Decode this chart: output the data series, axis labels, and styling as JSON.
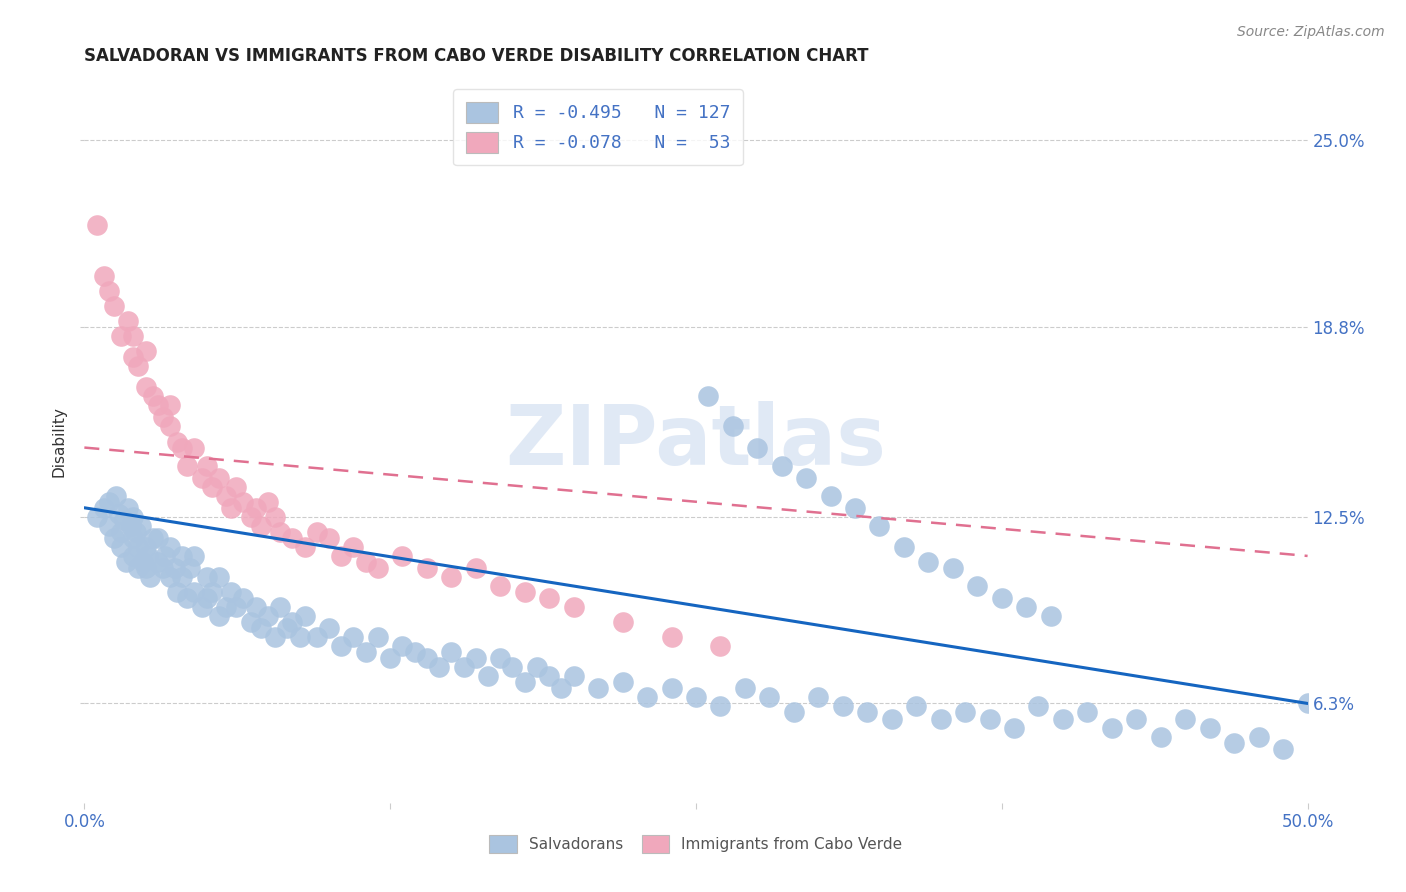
{
  "title": "SALVADORAN VS IMMIGRANTS FROM CABO VERDE DISABILITY CORRELATION CHART",
  "source": "Source: ZipAtlas.com",
  "ylabel": "Disability",
  "ytick_labels": [
    "6.3%",
    "12.5%",
    "18.8%",
    "25.0%"
  ],
  "ytick_values": [
    0.063,
    0.125,
    0.188,
    0.25
  ],
  "xlim": [
    0.0,
    0.5
  ],
  "ylim": [
    0.03,
    0.27
  ],
  "blue_color": "#aac4e0",
  "pink_color": "#f0a8bc",
  "blue_line_color": "#1565c0",
  "pink_line_color": "#e07090",
  "watermark_text": "ZIPatlas",
  "legend_entries": [
    {
      "label": "R = -0.495   N = 127",
      "color": "#aac4e0"
    },
    {
      "label": "R = -0.078   N =  53",
      "color": "#f0a8bc"
    }
  ],
  "bottom_legend": [
    "Salvadorans",
    "Immigrants from Cabo Verde"
  ],
  "blue_line_x": [
    0.0,
    0.5
  ],
  "blue_line_y": [
    0.128,
    0.063
  ],
  "pink_line_x": [
    0.0,
    0.5
  ],
  "pink_line_y": [
    0.148,
    0.112
  ],
  "blue_x": [
    0.005,
    0.008,
    0.01,
    0.01,
    0.012,
    0.013,
    0.014,
    0.015,
    0.015,
    0.016,
    0.017,
    0.018,
    0.019,
    0.02,
    0.02,
    0.02,
    0.021,
    0.022,
    0.022,
    0.023,
    0.024,
    0.025,
    0.025,
    0.026,
    0.027,
    0.028,
    0.03,
    0.03,
    0.032,
    0.033,
    0.035,
    0.035,
    0.037,
    0.038,
    0.04,
    0.04,
    0.042,
    0.043,
    0.045,
    0.045,
    0.048,
    0.05,
    0.05,
    0.052,
    0.055,
    0.055,
    0.058,
    0.06,
    0.062,
    0.065,
    0.068,
    0.07,
    0.072,
    0.075,
    0.078,
    0.08,
    0.083,
    0.085,
    0.088,
    0.09,
    0.095,
    0.1,
    0.105,
    0.11,
    0.115,
    0.12,
    0.125,
    0.13,
    0.135,
    0.14,
    0.145,
    0.15,
    0.155,
    0.16,
    0.165,
    0.17,
    0.175,
    0.18,
    0.185,
    0.19,
    0.195,
    0.2,
    0.21,
    0.22,
    0.23,
    0.24,
    0.25,
    0.26,
    0.27,
    0.28,
    0.29,
    0.3,
    0.31,
    0.32,
    0.33,
    0.34,
    0.35,
    0.36,
    0.37,
    0.38,
    0.39,
    0.4,
    0.41,
    0.42,
    0.43,
    0.44,
    0.45,
    0.46,
    0.47,
    0.48,
    0.49,
    0.5,
    0.255,
    0.265,
    0.275,
    0.285,
    0.295,
    0.305,
    0.315,
    0.325,
    0.335,
    0.345,
    0.355,
    0.365,
    0.375,
    0.385,
    0.395
  ],
  "blue_y": [
    0.125,
    0.128,
    0.13,
    0.122,
    0.118,
    0.132,
    0.126,
    0.12,
    0.115,
    0.124,
    0.11,
    0.128,
    0.122,
    0.118,
    0.125,
    0.112,
    0.12,
    0.108,
    0.115,
    0.122,
    0.11,
    0.115,
    0.108,
    0.112,
    0.105,
    0.118,
    0.11,
    0.118,
    0.108,
    0.112,
    0.105,
    0.115,
    0.108,
    0.1,
    0.105,
    0.112,
    0.098,
    0.108,
    0.1,
    0.112,
    0.095,
    0.105,
    0.098,
    0.1,
    0.092,
    0.105,
    0.095,
    0.1,
    0.095,
    0.098,
    0.09,
    0.095,
    0.088,
    0.092,
    0.085,
    0.095,
    0.088,
    0.09,
    0.085,
    0.092,
    0.085,
    0.088,
    0.082,
    0.085,
    0.08,
    0.085,
    0.078,
    0.082,
    0.08,
    0.078,
    0.075,
    0.08,
    0.075,
    0.078,
    0.072,
    0.078,
    0.075,
    0.07,
    0.075,
    0.072,
    0.068,
    0.072,
    0.068,
    0.07,
    0.065,
    0.068,
    0.065,
    0.062,
    0.068,
    0.065,
    0.06,
    0.065,
    0.062,
    0.06,
    0.058,
    0.062,
    0.058,
    0.06,
    0.058,
    0.055,
    0.062,
    0.058,
    0.06,
    0.055,
    0.058,
    0.052,
    0.058,
    0.055,
    0.05,
    0.052,
    0.048,
    0.063,
    0.165,
    0.155,
    0.148,
    0.142,
    0.138,
    0.132,
    0.128,
    0.122,
    0.115,
    0.11,
    0.108,
    0.102,
    0.098,
    0.095,
    0.092
  ],
  "pink_x": [
    0.005,
    0.008,
    0.01,
    0.012,
    0.015,
    0.018,
    0.02,
    0.02,
    0.022,
    0.025,
    0.025,
    0.028,
    0.03,
    0.032,
    0.035,
    0.035,
    0.038,
    0.04,
    0.042,
    0.045,
    0.048,
    0.05,
    0.052,
    0.055,
    0.058,
    0.06,
    0.062,
    0.065,
    0.068,
    0.07,
    0.072,
    0.075,
    0.078,
    0.08,
    0.085,
    0.09,
    0.095,
    0.1,
    0.105,
    0.11,
    0.115,
    0.12,
    0.13,
    0.14,
    0.15,
    0.16,
    0.17,
    0.18,
    0.19,
    0.2,
    0.22,
    0.24,
    0.26
  ],
  "pink_y": [
    0.222,
    0.205,
    0.2,
    0.195,
    0.185,
    0.19,
    0.178,
    0.185,
    0.175,
    0.168,
    0.18,
    0.165,
    0.162,
    0.158,
    0.155,
    0.162,
    0.15,
    0.148,
    0.142,
    0.148,
    0.138,
    0.142,
    0.135,
    0.138,
    0.132,
    0.128,
    0.135,
    0.13,
    0.125,
    0.128,
    0.122,
    0.13,
    0.125,
    0.12,
    0.118,
    0.115,
    0.12,
    0.118,
    0.112,
    0.115,
    0.11,
    0.108,
    0.112,
    0.108,
    0.105,
    0.108,
    0.102,
    0.1,
    0.098,
    0.095,
    0.09,
    0.085,
    0.082
  ]
}
